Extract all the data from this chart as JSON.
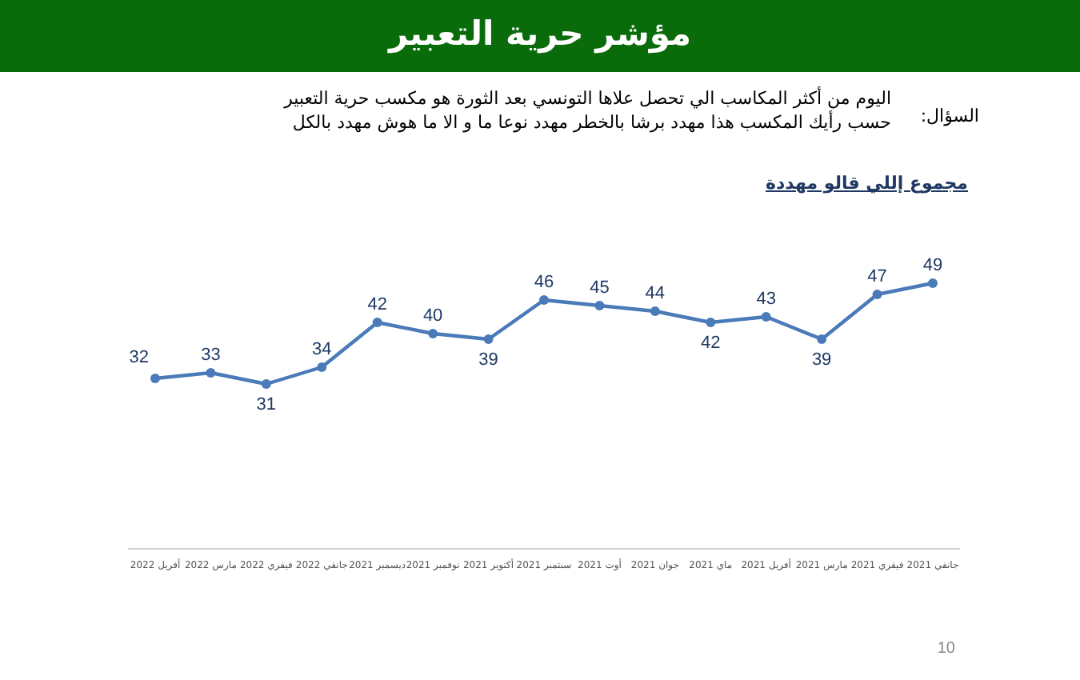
{
  "chart_data": {
    "type": "line",
    "title": "مؤشر حرية التعبير",
    "subtitle": "اليوم من أكثر المكاسب الي تحصل علاها التونسي بعد الثورة هو مكسب حرية التعبير حسب رأيك المكسب هذا مهدد برشا بالخطر مهدد نوعا ما و الا ما هوش مهدد بالكل",
    "annotations": [
      "السؤال:",
      "10"
    ],
    "categories": [
      "أفريل 2022",
      "مارس 2022",
      "فيفري 2022",
      "جانفي 2022",
      "ديسمبر 2021",
      "نوفمبر 2021",
      "أكتوبر 2021",
      "سبتمبر 2021",
      "أوت 2021",
      "جوان 2021",
      "ماي 2021",
      "أفريل 2021",
      "مارس 2021",
      "فيفري 2021",
      "جانفي 2021"
    ],
    "series": [
      {
        "name": "مجموع إللي قالو مهددة",
        "color": "#4a7ab8",
        "values": [
          32,
          33,
          31,
          34,
          42,
          40,
          39,
          46,
          45,
          44,
          42,
          43,
          39,
          47,
          49
        ]
      }
    ],
    "data_labels": true,
    "marker": "circle"
  }
}
